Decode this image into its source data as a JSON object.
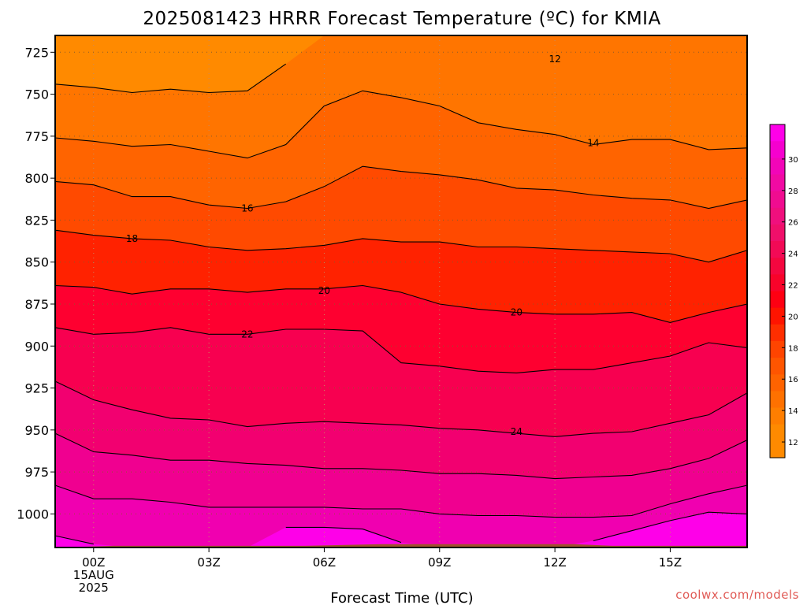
{
  "title": "2025081423 HRRR Forecast Temperature (ºC) for KMIA",
  "credit": "coolwx.com/models",
  "chart_data": {
    "type": "heatmap",
    "title": "2025081423 HRRR Forecast Temperature (ºC) for KMIA",
    "xlabel": "Forecast Time (UTC)",
    "ylabel": "",
    "x_range_hours": [
      -1,
      17
    ],
    "y_range_hpa": [
      715,
      1020
    ],
    "y_scale": "pressure (inverted)",
    "grid": true,
    "y_ticks": [
      725,
      750,
      775,
      800,
      825,
      850,
      875,
      900,
      925,
      950,
      975,
      1000
    ],
    "x_ticks": [
      {
        "hour": 0,
        "lines": [
          "00Z",
          "15AUG",
          "2025"
        ]
      },
      {
        "hour": 3,
        "lines": [
          "03Z"
        ]
      },
      {
        "hour": 6,
        "lines": [
          "06Z"
        ]
      },
      {
        "hour": 9,
        "lines": [
          "09Z"
        ]
      },
      {
        "hour": 12,
        "lines": [
          "12Z"
        ]
      },
      {
        "hour": 15,
        "lines": [
          "15Z"
        ]
      }
    ],
    "contour_levels": [
      12,
      14,
      16,
      18,
      20,
      22,
      24,
      26,
      28,
      30
    ],
    "contour_hours": [
      -1,
      0,
      1,
      2,
      3,
      4,
      5,
      6,
      7,
      8,
      9,
      10,
      11,
      12,
      13,
      14,
      15,
      16,
      17
    ],
    "contours_pressure_hpa": {
      "12": [
        744,
        746,
        749,
        747,
        749,
        748,
        732,
        null,
        null,
        null,
        null,
        null,
        null,
        null,
        null,
        null,
        null,
        null,
        null
      ],
      "14": [
        776,
        778,
        781,
        780,
        784,
        788,
        780,
        757,
        748,
        752,
        757,
        767,
        771,
        774,
        780,
        777,
        777,
        783,
        782
      ],
      "16": [
        802,
        804,
        811,
        811,
        816,
        818,
        814,
        805,
        793,
        796,
        798,
        801,
        806,
        807,
        810,
        812,
        813,
        818,
        813
      ],
      "18": [
        831,
        834,
        836,
        837,
        841,
        843,
        842,
        840,
        836,
        838,
        838,
        841,
        841,
        842,
        843,
        844,
        845,
        850,
        843
      ],
      "20": [
        864,
        865,
        869,
        866,
        866,
        868,
        866,
        866,
        864,
        868,
        875,
        878,
        880,
        881,
        881,
        880,
        886,
        880,
        875
      ],
      "22": [
        889,
        893,
        892,
        889,
        893,
        893,
        890,
        890,
        891,
        910,
        912,
        915,
        916,
        914,
        914,
        910,
        906,
        898,
        901
      ],
      "24": [
        921,
        932,
        938,
        943,
        944,
        948,
        946,
        945,
        946,
        947,
        949,
        950,
        952,
        954,
        952,
        951,
        946,
        941,
        928
      ],
      "26": [
        952,
        963,
        965,
        968,
        968,
        970,
        971,
        973,
        973,
        974,
        976,
        976,
        977,
        979,
        978,
        977,
        973,
        967,
        956
      ],
      "28": [
        983,
        991,
        991,
        993,
        996,
        996,
        996,
        996,
        997,
        997,
        1000,
        1001,
        1001,
        1002,
        1002,
        1001,
        994,
        988,
        983
      ],
      "30": [
        1013,
        1018,
        null,
        null,
        null,
        null,
        1008,
        1008,
        1009,
        1017,
        null,
        null,
        null,
        null,
        1016,
        1010,
        1004,
        999,
        1000
      ]
    },
    "contour_labels": [
      {
        "level": 12,
        "hour": 12.0,
        "p": 729,
        "text": "12"
      },
      {
        "level": 14,
        "hour": 13.0,
        "p": 779,
        "text": "14"
      },
      {
        "level": 16,
        "hour": 4.0,
        "p": 818,
        "text": "16"
      },
      {
        "level": 18,
        "hour": 1.0,
        "p": 836,
        "text": "18"
      },
      {
        "level": 20,
        "hour": 6.0,
        "p": 867,
        "text": "20"
      },
      {
        "level": 20,
        "hour": 11.0,
        "p": 880,
        "text": "20"
      },
      {
        "level": 22,
        "hour": 4.0,
        "p": 893,
        "text": "22"
      },
      {
        "level": 24,
        "hour": 11.0,
        "p": 951,
        "text": "24"
      }
    ],
    "ground": {
      "hours": [
        -1,
        0.5,
        2.5,
        5.5,
        7.5,
        9.5,
        12.5,
        13.5,
        15.5,
        17
      ],
      "p": [
        1020,
        1019,
        1019,
        1019,
        1018,
        1018,
        1018,
        1019,
        1019,
        1019
      ]
    },
    "colorbar": {
      "ticks": [
        30,
        28,
        26,
        24,
        22,
        20,
        18,
        16,
        14,
        12
      ],
      "bins": [
        {
          "min": 31,
          "color": "#fe00e8"
        },
        {
          "min": 30,
          "color": "#f500cf"
        },
        {
          "min": 29,
          "color": "#f205b8"
        },
        {
          "min": 28,
          "color": "#f10aa3"
        },
        {
          "min": 27,
          "color": "#f00c90"
        },
        {
          "min": 26,
          "color": "#f00f7d"
        },
        {
          "min": 25,
          "color": "#f00f6a"
        },
        {
          "min": 24,
          "color": "#f20a56"
        },
        {
          "min": 23,
          "color": "#f4073f"
        },
        {
          "min": 22,
          "color": "#f8032a"
        },
        {
          "min": 21,
          "color": "#fe0012"
        },
        {
          "min": 20,
          "color": "#ff1400"
        },
        {
          "min": 19,
          "color": "#ff2e00"
        },
        {
          "min": 18,
          "color": "#ff4400"
        },
        {
          "min": 17,
          "color": "#ff5500"
        },
        {
          "min": 16,
          "color": "#ff6300"
        },
        {
          "min": 15,
          "color": "#ff7100"
        },
        {
          "min": 14,
          "color": "#ff7e00"
        },
        {
          "min": 13,
          "color": "#ff8a00"
        },
        {
          "min": 11,
          "color": "#ff8a00"
        }
      ]
    },
    "fill_colors": {
      "below_12": "#ff8a00",
      "12_14": "#ff7500",
      "14_16": "#ff6400",
      "16_18": "#ff4a00",
      "18_20": "#ff2200",
      "20_22": "#fe0030",
      "22_24": "#f70050",
      "24_26": "#f20070",
      "26_28": "#f00090",
      "28_30": "#f000b0",
      "above_30": "#fe00e8",
      "ground": "#a0522d"
    }
  }
}
